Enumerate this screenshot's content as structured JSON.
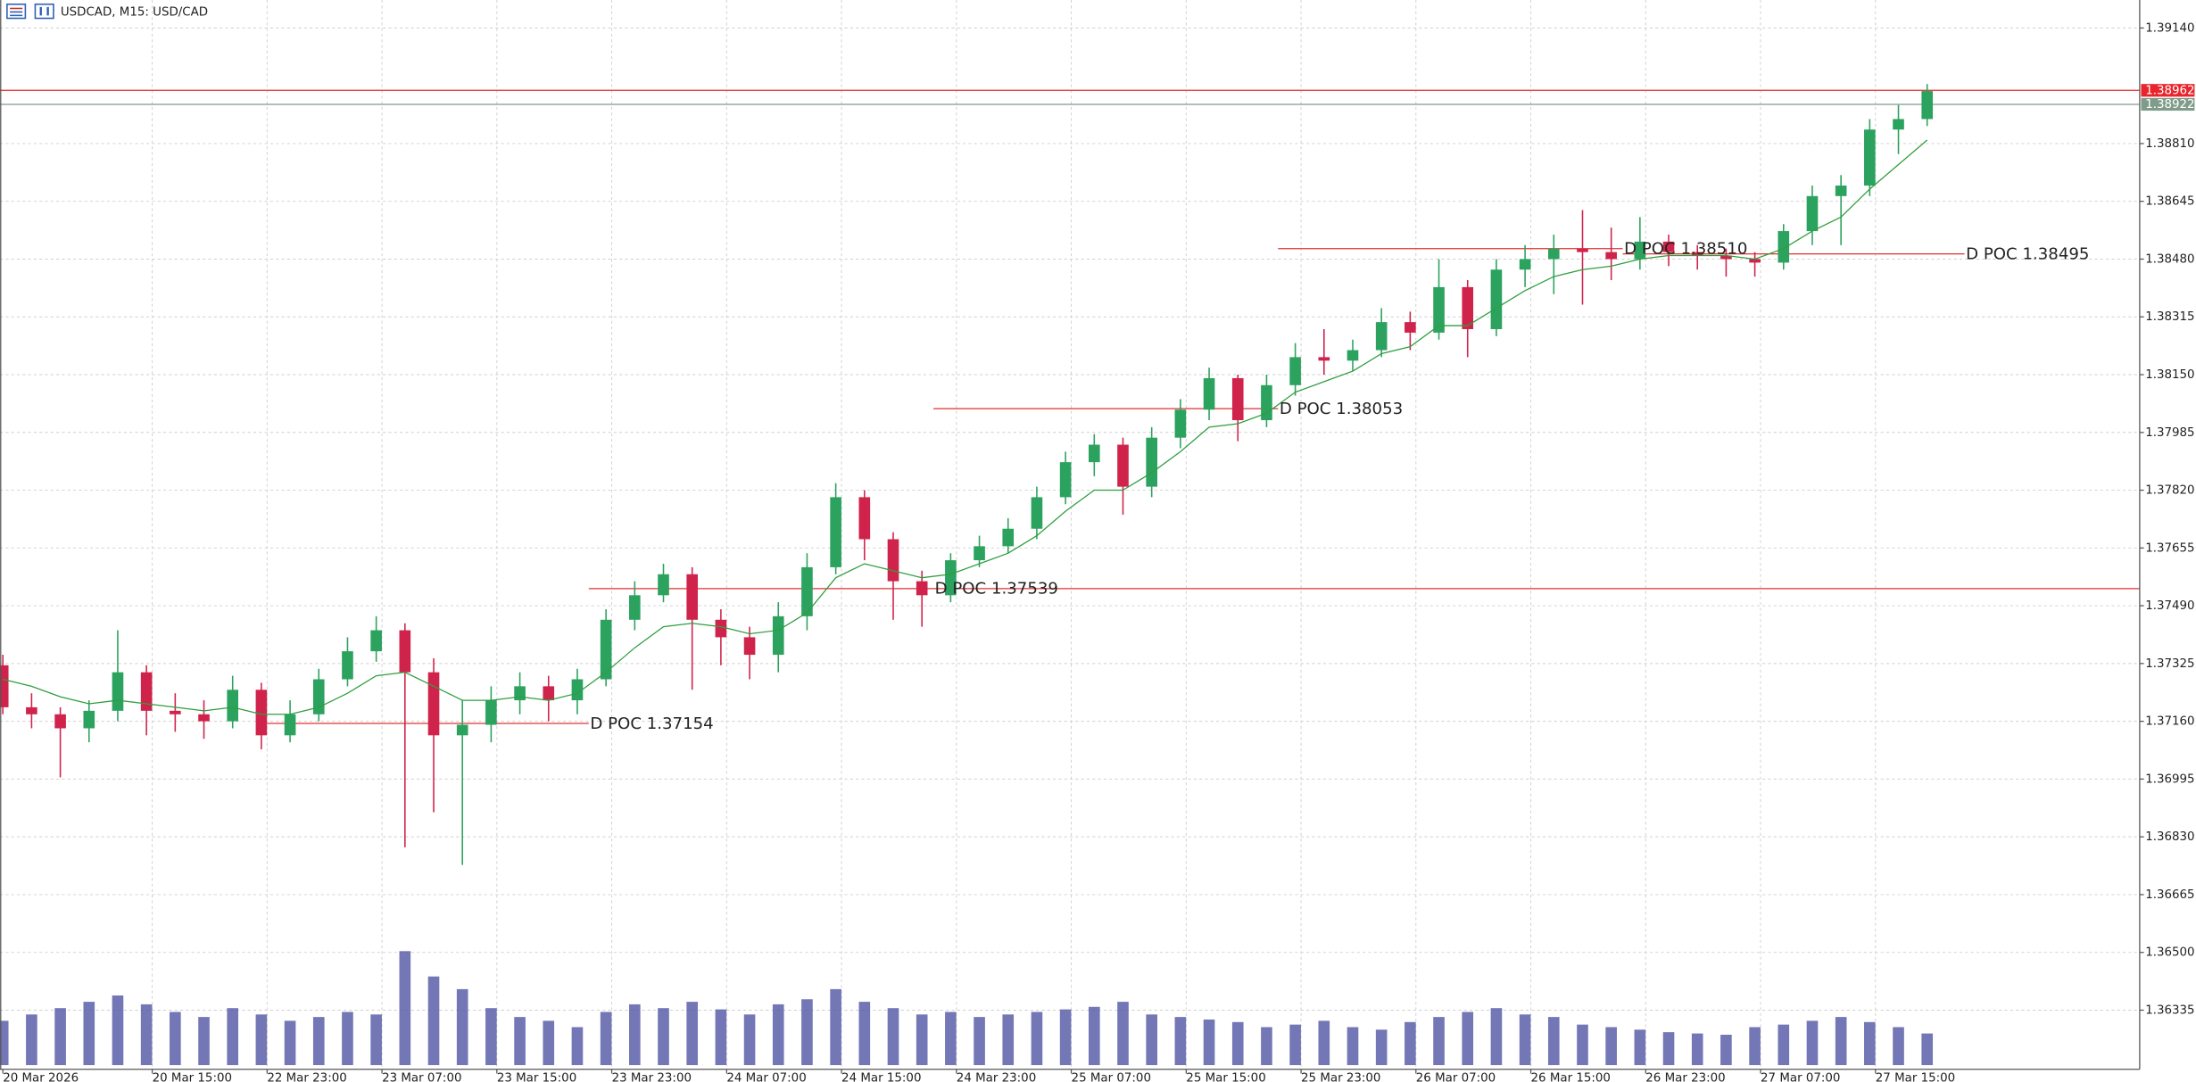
{
  "chart_data": {
    "type": "candlestick",
    "title": "USDCAD, M15:  USD/CAD",
    "xlim": [
      -0.1,
      74.4
    ],
    "xticks": [
      {
        "value": 0,
        "label": "20 Mar 2026"
      },
      {
        "value": 5.2,
        "label": "20 Mar 15:00"
      },
      {
        "value": 9.2,
        "label": "22 Mar 23:00"
      },
      {
        "value": 13.2,
        "label": "23 Mar 07:00"
      },
      {
        "value": 17.2,
        "label": "23 Mar 15:00"
      },
      {
        "value": 21.2,
        "label": "23 Mar 23:00"
      },
      {
        "value": 25.2,
        "label": "24 Mar 07:00"
      },
      {
        "value": 29.2,
        "label": "24 Mar 15:00"
      },
      {
        "value": 33.2,
        "label": "24 Mar 23:00"
      },
      {
        "value": 37.2,
        "label": "25 Mar 07:00"
      },
      {
        "value": 41.2,
        "label": "25 Mar 15:00"
      },
      {
        "value": 45.2,
        "label": "25 Mar 23:00"
      },
      {
        "value": 49.2,
        "label": "26 Mar 07:00"
      },
      {
        "value": 53.2,
        "label": "26 Mar 15:00"
      },
      {
        "value": 57.2,
        "label": "26 Mar 23:00"
      },
      {
        "value": 61.2,
        "label": "27 Mar 07:00"
      },
      {
        "value": 65.2,
        "label": "27 Mar 15:00"
      }
    ],
    "ylim": [
      1.36166,
      1.3922
    ],
    "yticks": [
      {
        "value": 1.3914,
        "label": "1.39140"
      },
      {
        "value": 1.3881,
        "label": "1.38810"
      },
      1.38645,
      {
        "value": 1.3848,
        "label": "1.38480"
      },
      1.38315,
      {
        "value": 1.3815,
        "label": "1.38150"
      },
      1.37985,
      {
        "value": 1.3782,
        "label": "1.37820"
      },
      1.37655,
      {
        "value": 1.3749,
        "label": "1.37490"
      },
      1.37325,
      {
        "value": 1.3716,
        "label": "1.37160"
      },
      1.36995,
      {
        "value": 1.3683,
        "label": "1.36830"
      },
      1.36665,
      {
        "value": 1.365,
        "label": "1.36500"
      },
      1.36335
    ],
    "grid": true,
    "up_color": "#2ca25f",
    "down_color": "#d0234b",
    "open": [
      1.3732,
      1.372,
      1.3718,
      1.3714,
      1.3719,
      1.373,
      1.3719,
      1.3718,
      1.3716,
      1.3725,
      1.3712,
      1.3718,
      1.3728,
      1.3736,
      1.3742,
      1.373,
      1.3712,
      1.3715,
      1.3722,
      1.3726,
      1.3722,
      1.3728,
      1.3745,
      1.3752,
      1.3758,
      1.3745,
      1.374,
      1.3735,
      1.3746,
      1.376,
      1.378,
      1.3768,
      1.3756,
      1.3752,
      1.3762,
      1.3766,
      1.3771,
      1.378,
      1.379,
      1.3795,
      1.3783,
      1.3797,
      1.3805,
      1.3814,
      1.3802,
      1.3812,
      1.382,
      1.3819,
      1.3822,
      1.383,
      1.3827,
      1.384,
      1.3828,
      1.3845,
      1.3848,
      1.3851,
      1.385,
      1.3848,
      1.3853,
      1.385,
      1.3849,
      1.3848,
      1.3847,
      1.3856,
      1.3866,
      1.3869,
      1.3885,
      1.3888
    ],
    "high": [
      1.3735,
      1.3724,
      1.372,
      1.3722,
      1.3742,
      1.3732,
      1.3724,
      1.3722,
      1.3729,
      1.3727,
      1.3722,
      1.3731,
      1.374,
      1.3746,
      1.3744,
      1.3734,
      1.3722,
      1.3726,
      1.373,
      1.3729,
      1.3731,
      1.3748,
      1.3756,
      1.3761,
      1.376,
      1.3748,
      1.3743,
      1.375,
      1.3764,
      1.3784,
      1.3782,
      1.377,
      1.3759,
      1.3764,
      1.3769,
      1.3774,
      1.3783,
      1.3793,
      1.3798,
      1.3797,
      1.38,
      1.3808,
      1.3817,
      1.3815,
      1.3815,
      1.3824,
      1.3828,
      1.3825,
      1.3834,
      1.3833,
      1.3848,
      1.3842,
      1.3848,
      1.3852,
      1.3855,
      1.3862,
      1.3857,
      1.386,
      1.3855,
      1.3852,
      1.3851,
      1.385,
      1.3858,
      1.3869,
      1.3872,
      1.3888,
      1.3892,
      1.3898
    ],
    "low": [
      1.3718,
      1.3714,
      1.37,
      1.371,
      1.3716,
      1.3712,
      1.3713,
      1.3711,
      1.3714,
      1.3708,
      1.371,
      1.3716,
      1.3726,
      1.3733,
      1.368,
      1.369,
      1.3675,
      1.371,
      1.3718,
      1.3716,
      1.3718,
      1.3726,
      1.3742,
      1.375,
      1.3725,
      1.3732,
      1.3728,
      1.373,
      1.3742,
      1.3758,
      1.3762,
      1.3745,
      1.3743,
      1.375,
      1.376,
      1.3764,
      1.3768,
      1.3778,
      1.3786,
      1.3775,
      1.378,
      1.3794,
      1.3802,
      1.3796,
      1.38,
      1.3809,
      1.3815,
      1.3816,
      1.382,
      1.3822,
      1.3825,
      1.382,
      1.3826,
      1.384,
      1.3838,
      1.3835,
      1.3842,
      1.3845,
      1.3846,
      1.3845,
      1.3843,
      1.3843,
      1.3845,
      1.3852,
      1.3852,
      1.3866,
      1.3878,
      1.3886
    ],
    "close": [
      1.372,
      1.3718,
      1.3714,
      1.3719,
      1.373,
      1.3719,
      1.3718,
      1.3716,
      1.3725,
      1.3712,
      1.3718,
      1.3728,
      1.3736,
      1.3742,
      1.373,
      1.3712,
      1.3715,
      1.3722,
      1.3726,
      1.3722,
      1.3728,
      1.3745,
      1.3752,
      1.3758,
      1.3745,
      1.374,
      1.3735,
      1.3746,
      1.376,
      1.378,
      1.3768,
      1.3756,
      1.3752,
      1.3762,
      1.3766,
      1.3771,
      1.378,
      1.379,
      1.3795,
      1.3783,
      1.3797,
      1.3805,
      1.3814,
      1.3802,
      1.3812,
      1.382,
      1.3819,
      1.3822,
      1.383,
      1.3827,
      1.384,
      1.3828,
      1.3845,
      1.3848,
      1.3851,
      1.385,
      1.3848,
      1.3853,
      1.385,
      1.3849,
      1.3848,
      1.3847,
      1.3856,
      1.3866,
      1.3869,
      1.3885,
      1.3888,
      1.3896
    ],
    "ma": {
      "color": "#2e9e3e",
      "values": [
        1.3728,
        1.3726,
        1.3723,
        1.3721,
        1.3722,
        1.3721,
        1.372,
        1.3719,
        1.372,
        1.3718,
        1.3718,
        1.372,
        1.3724,
        1.3729,
        1.373,
        1.3726,
        1.3722,
        1.3722,
        1.3723,
        1.3722,
        1.3724,
        1.373,
        1.3737,
        1.3743,
        1.3744,
        1.3743,
        1.3741,
        1.3742,
        1.3747,
        1.3757,
        1.3761,
        1.3759,
        1.3757,
        1.3758,
        1.3761,
        1.3764,
        1.3769,
        1.3776,
        1.3782,
        1.3782,
        1.3787,
        1.3793,
        1.38,
        1.3801,
        1.3804,
        1.381,
        1.3813,
        1.3816,
        1.3821,
        1.3823,
        1.3829,
        1.3829,
        1.3834,
        1.3839,
        1.3843,
        1.3845,
        1.3846,
        1.3848,
        1.3849,
        1.3849,
        1.3849,
        1.3848,
        1.3851,
        1.3856,
        1.386,
        1.3868,
        1.3875,
        1.3882
      ]
    },
    "volume": {
      "color": "#5a5fa8",
      "values": [
        35,
        40,
        45,
        50,
        55,
        48,
        42,
        38,
        45,
        40,
        35,
        38,
        42,
        40,
        90,
        70,
        60,
        45,
        38,
        35,
        30,
        42,
        48,
        45,
        50,
        44,
        40,
        48,
        52,
        60,
        50,
        45,
        40,
        42,
        38,
        40,
        42,
        44,
        46,
        50,
        40,
        38,
        36,
        34,
        30,
        32,
        35,
        30,
        28,
        34,
        38,
        42,
        45,
        40,
        38,
        32,
        30,
        28,
        26,
        25,
        24,
        30,
        32,
        35,
        38,
        34,
        30,
        25
      ]
    },
    "poc": [
      {
        "label": "D POC 1.37154",
        "price": 1.37154,
        "from": 9.2,
        "to": 20.4,
        "extend": false
      },
      {
        "label": "D POC 1.37539",
        "price": 1.37539,
        "from": 20.4,
        "to": 32.4,
        "extend": true
      },
      {
        "label": "D POC 1.38053",
        "price": 1.38053,
        "from": 32.4,
        "to": 44.4,
        "extend": false
      },
      {
        "label": "D POC 1.38510",
        "price": 1.3851,
        "from": 44.4,
        "to": 56.4,
        "extend": false
      },
      {
        "label": "D POC 1.38495",
        "price": 1.38495,
        "from": 56.4,
        "to": 68.3,
        "extend": false
      }
    ],
    "poc_color": "#e03030",
    "price_lines": [
      {
        "price": 1.38962,
        "color": "#e8242c"
      },
      {
        "price": 1.38922,
        "color": "#7f9c8a"
      }
    ]
  }
}
